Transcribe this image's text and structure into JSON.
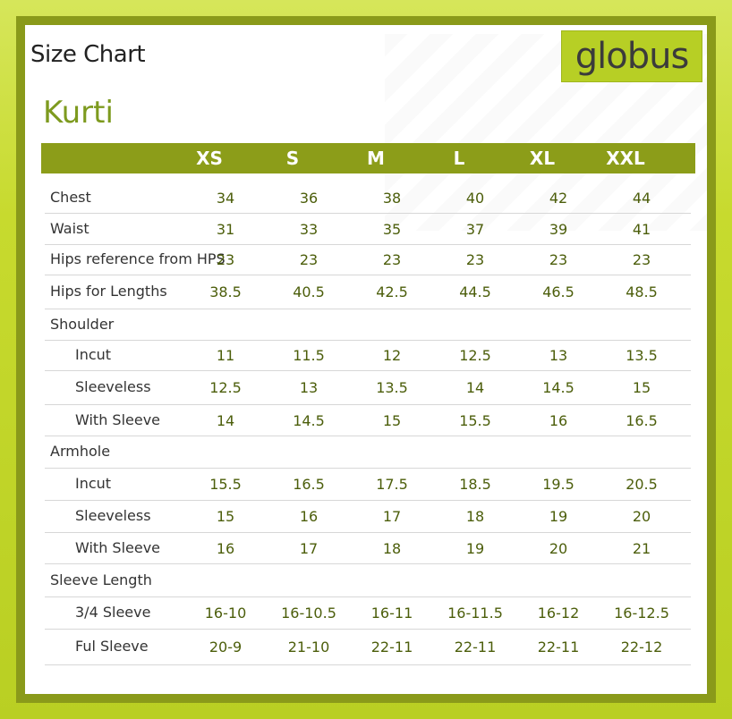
{
  "title": "Size Chart",
  "subtitle": "Kurti",
  "logo": "globus",
  "columns": [
    "XS",
    "S",
    "M",
    "L",
    "XL",
    "XXL"
  ],
  "rows": [
    {
      "label": "Chest",
      "values": [
        "34",
        "36",
        "38",
        "40",
        "42",
        "44"
      ],
      "sub": false
    },
    {
      "label": "Waist",
      "values": [
        "31",
        "33",
        "35",
        "37",
        "39",
        "41"
      ],
      "sub": false
    },
    {
      "label": "Hips reference from HPS",
      "values": [
        "23",
        "23",
        "23",
        "23",
        "23",
        "23"
      ],
      "sub": false
    },
    {
      "label": "Hips for Lengths",
      "values": [
        "38.5",
        "40.5",
        "42.5",
        "44.5",
        "46.5",
        "48.5"
      ],
      "sub": false
    },
    {
      "label": "Shoulder",
      "values": [
        "",
        "",
        "",
        "",
        "",
        ""
      ],
      "sub": false
    },
    {
      "label": "Incut",
      "values": [
        "11",
        "11.5",
        "12",
        "12.5",
        "13",
        "13.5"
      ],
      "sub": true
    },
    {
      "label": "Sleeveless",
      "values": [
        "12.5",
        "13",
        "13.5",
        "14",
        "14.5",
        "15"
      ],
      "sub": true
    },
    {
      "label": "With Sleeve",
      "values": [
        "14",
        "14.5",
        "15",
        "15.5",
        "16",
        "16.5"
      ],
      "sub": true
    },
    {
      "label": "Armhole",
      "values": [
        "",
        "",
        "",
        "",
        "",
        ""
      ],
      "sub": false
    },
    {
      "label": "Incut",
      "values": [
        "15.5",
        "16.5",
        "17.5",
        "18.5",
        "19.5",
        "20.5"
      ],
      "sub": true
    },
    {
      "label": "Sleeveless",
      "values": [
        "15",
        "16",
        "17",
        "18",
        "19",
        "20"
      ],
      "sub": true
    },
    {
      "label": "With Sleeve",
      "values": [
        "16",
        "17",
        "18",
        "19",
        "20",
        "21"
      ],
      "sub": true
    },
    {
      "label": "Sleeve Length",
      "values": [
        "",
        "",
        "",
        "",
        "",
        ""
      ],
      "sub": false
    },
    {
      "label": "3/4 Sleeve",
      "values": [
        "16-10",
        "16-10.5",
        "16-11",
        "16-11.5",
        "16-12",
        "16-12.5"
      ],
      "sub": true
    },
    {
      "label": "Ful Sleeve",
      "values": [
        "20-9",
        "21-10",
        "22-11",
        "22-11",
        "22-11",
        "22-12"
      ],
      "sub": true
    }
  ]
}
